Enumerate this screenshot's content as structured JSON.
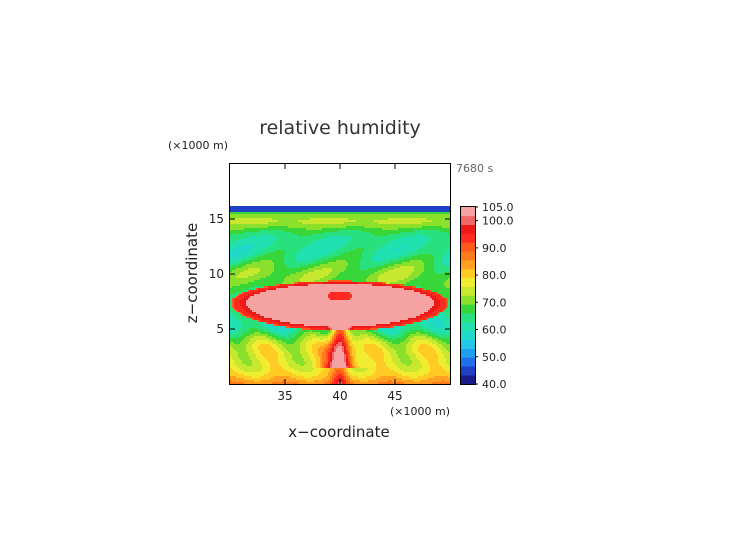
{
  "chart_data": {
    "type": "heatmap",
    "title": "relative humidity",
    "time_label": "7680 s",
    "xlabel": "x−coordinate",
    "ylabel": "z−coordinate",
    "x_unit": "(×1000 m)",
    "y_unit": "(×1000 m)",
    "xlim": [
      30,
      50
    ],
    "ylim": [
      0,
      20
    ],
    "x_ticks": [
      {
        "value": 35,
        "label": "35"
      },
      {
        "value": 40,
        "label": "40"
      },
      {
        "value": 45,
        "label": "45"
      }
    ],
    "y_ticks": [
      {
        "value": 5,
        "label": "5"
      },
      {
        "value": 10,
        "label": "10"
      },
      {
        "value": 15,
        "label": "15"
      }
    ],
    "colorbar": {
      "min": 40,
      "max": 105,
      "labels": [
        "105.0",
        "100.0",
        "90.0",
        "80.0",
        "70.0",
        "60.0",
        "50.0",
        "40.0"
      ],
      "label_values": [
        105,
        100,
        90,
        80,
        70,
        60,
        50,
        40
      ]
    },
    "grid": false,
    "legend": "colorbar-right"
  }
}
